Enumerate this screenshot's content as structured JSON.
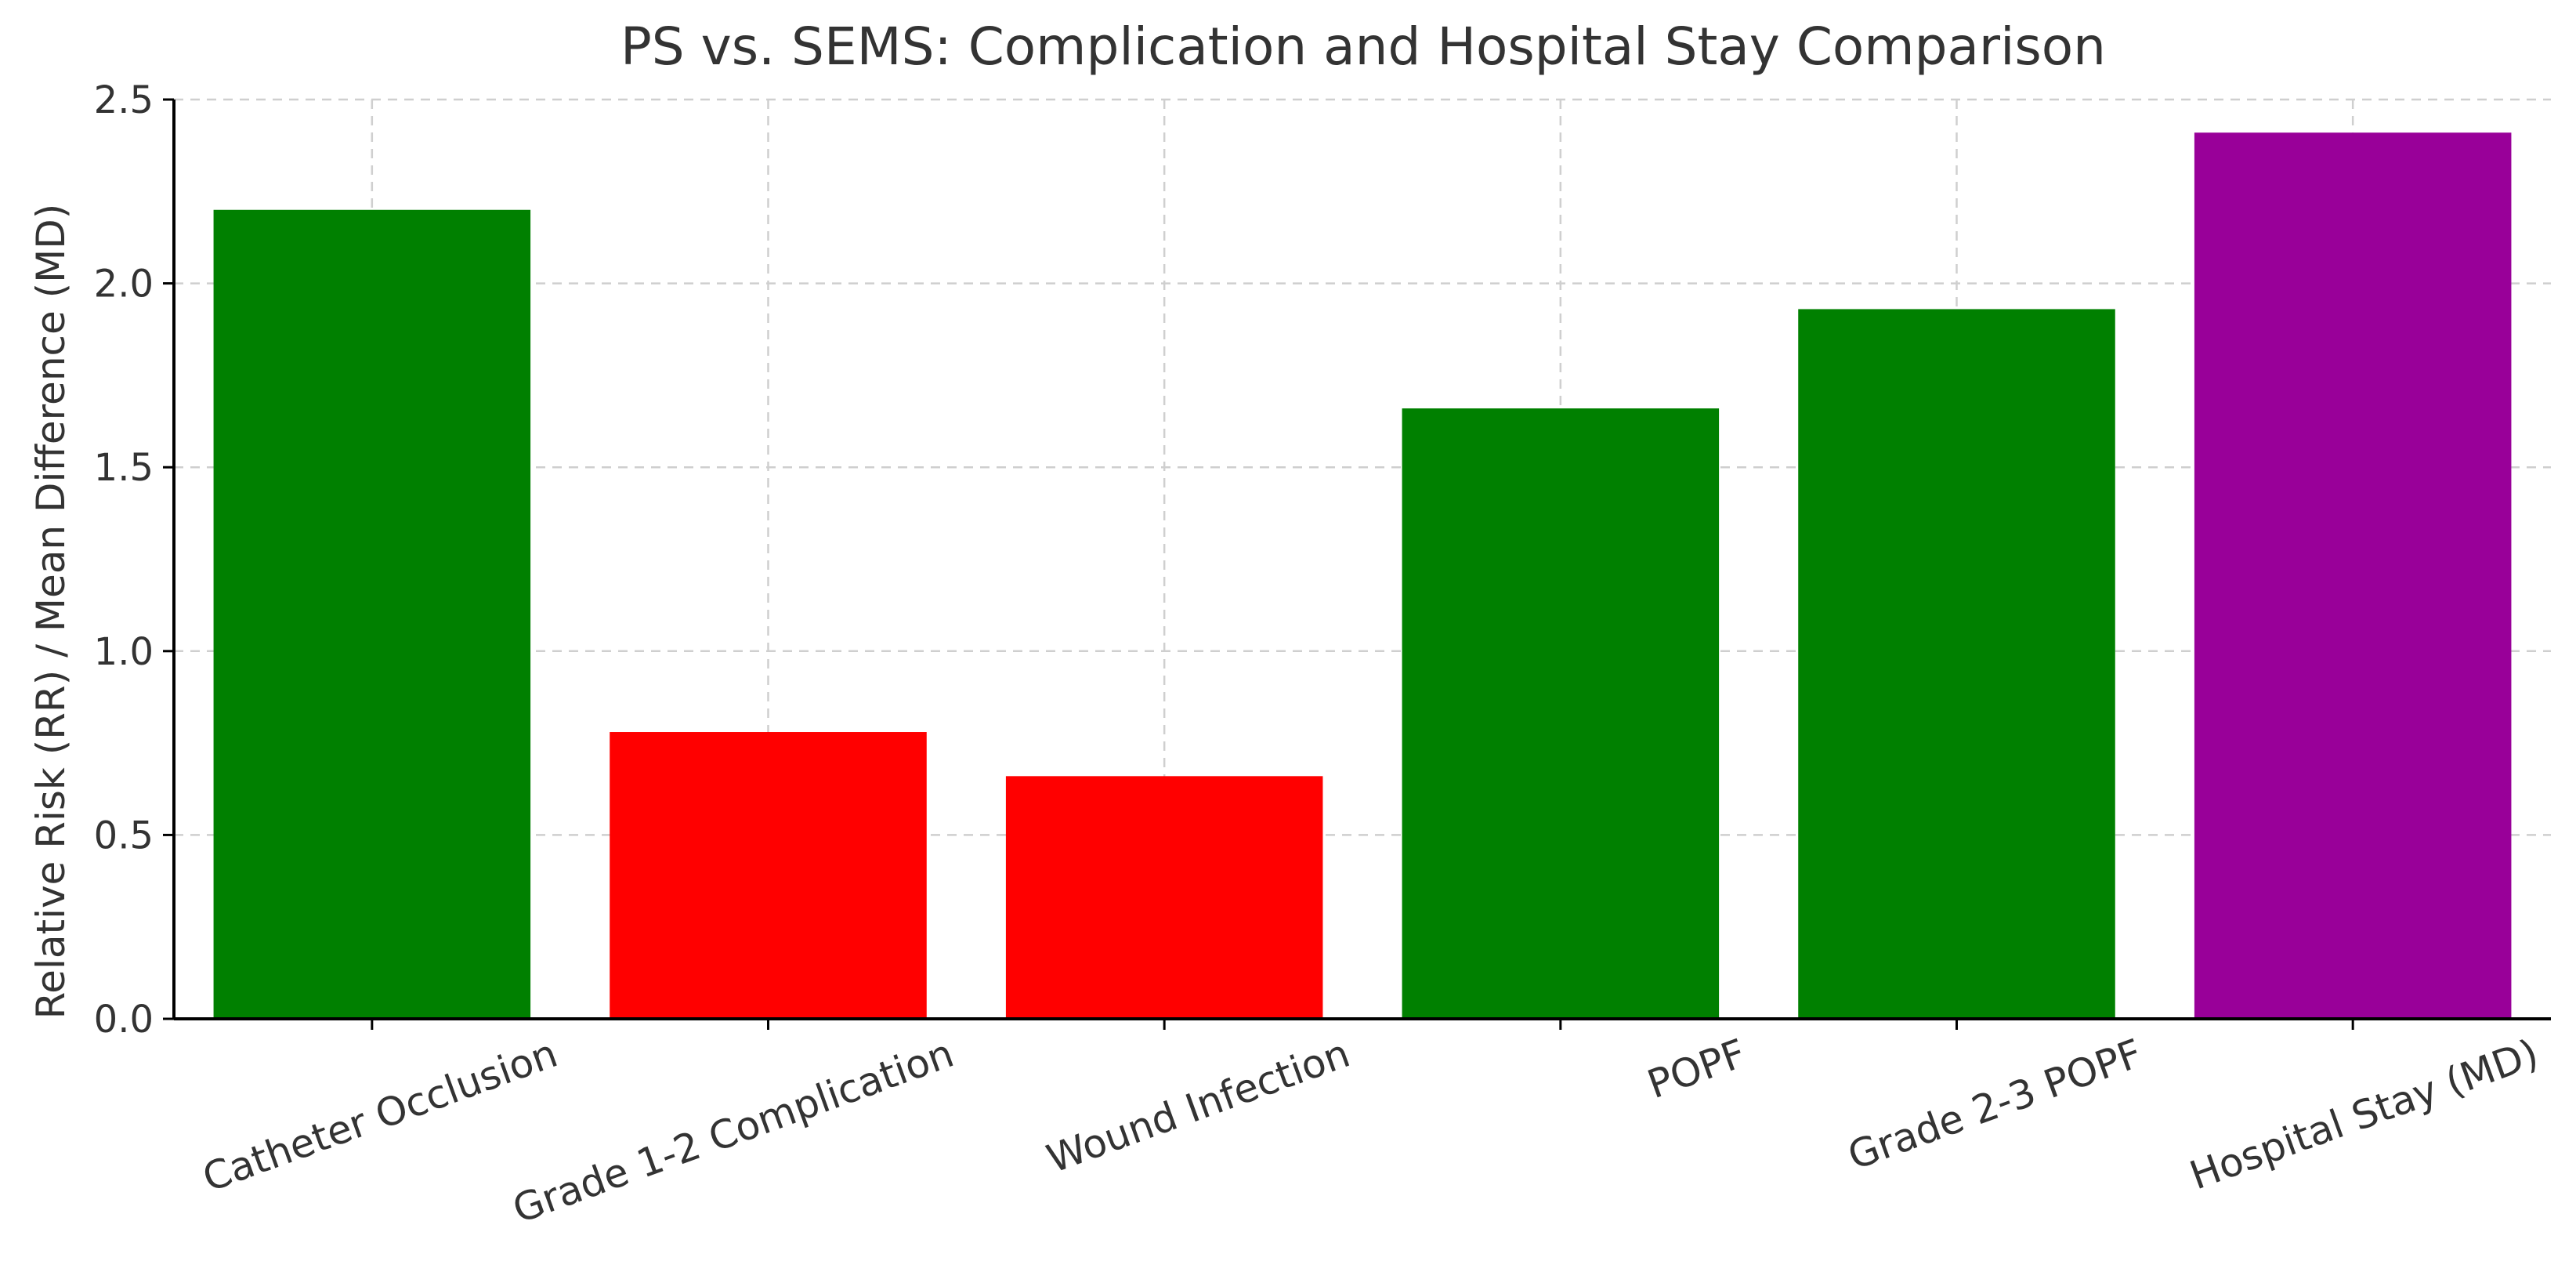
{
  "chart_data": {
    "type": "bar",
    "title": "PS vs. SEMS: Complication and Hospital Stay Comparison",
    "xlabel": "",
    "ylabel": "Relative Risk (RR) / Mean Difference (MD)",
    "categories": [
      "Catheter Occlusion",
      "Grade 1-2 Complication",
      "Wound Infection",
      "POPF",
      "Grade 2-3 POPF",
      "Hospital Stay (MD)"
    ],
    "values": [
      2.2,
      0.78,
      0.66,
      1.66,
      1.93,
      2.41
    ],
    "colors": [
      "#008000",
      "#ff0000",
      "#ff0000",
      "#008000",
      "#008000",
      "#990099"
    ],
    "ylim": [
      0,
      2.5
    ],
    "yticks": [
      "0.0",
      "0.5",
      "1.0",
      "1.5",
      "2.0",
      "2.5"
    ],
    "ytick_values": [
      0,
      0.5,
      1.0,
      1.5,
      2.0,
      2.5
    ],
    "grid": true,
    "legend": "none"
  }
}
